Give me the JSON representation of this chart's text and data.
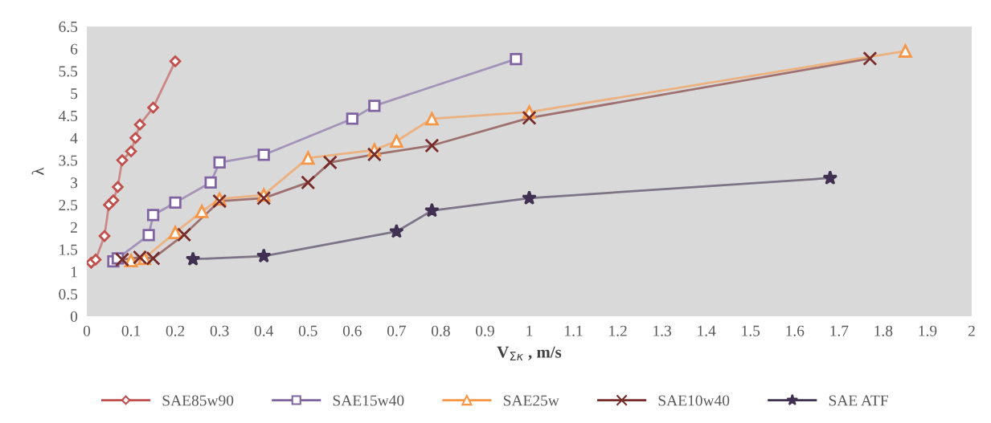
{
  "chart_data": {
    "type": "line",
    "xlabel": "V$_{Σκ}$ , m/s",
    "ylabel": "λ",
    "xlim": [
      0,
      2
    ],
    "xticks": [
      0,
      0.1,
      0.2,
      0.3,
      0.4,
      0.5,
      0.6,
      0.7,
      0.8,
      0.9,
      1,
      1.1,
      1.2,
      1.3,
      1.4,
      1.5,
      1.6,
      1.7,
      1.8,
      1.9,
      2
    ],
    "ylim": [
      0,
      6.5
    ],
    "yticks": [
      0,
      0.5,
      1,
      1.5,
      2,
      2.5,
      3,
      3.5,
      4,
      4.5,
      5,
      5.5,
      6,
      6.5
    ],
    "grid": false,
    "legend": "bottom",
    "line_style": "solid",
    "series": [
      {
        "name": "SAE85w90",
        "color": "#c0504d",
        "marker": "diamond",
        "x": [
          0.01,
          0.02,
          0.04,
          0.05,
          0.06,
          0.07,
          0.08,
          0.1,
          0.11,
          0.12,
          0.15,
          0.2
        ],
        "values": [
          1.2,
          1.27,
          1.8,
          2.5,
          2.6,
          2.9,
          3.5,
          3.7,
          4.0,
          4.3,
          4.68,
          5.72
        ]
      },
      {
        "name": "SAE15w40",
        "color": "#8064a2",
        "marker": "square",
        "x": [
          0.06,
          0.07,
          0.14,
          0.15,
          0.2,
          0.28,
          0.3,
          0.4,
          0.6,
          0.65,
          0.97
        ],
        "values": [
          1.23,
          1.3,
          1.82,
          2.27,
          2.55,
          3.0,
          3.45,
          3.62,
          4.43,
          4.72,
          5.77
        ]
      },
      {
        "name": "SAE25w",
        "color": "#f79646",
        "marker": "triangle",
        "x": [
          0.1,
          0.13,
          0.2,
          0.26,
          0.3,
          0.4,
          0.5,
          0.65,
          0.7,
          0.78,
          1.0,
          1.85
        ],
        "values": [
          1.25,
          1.3,
          1.88,
          2.35,
          2.63,
          2.72,
          3.55,
          3.73,
          3.93,
          4.43,
          4.58,
          5.95
        ]
      },
      {
        "name": "SAE10w40",
        "color": "#772c2a",
        "marker": "cross",
        "x": [
          0.08,
          0.12,
          0.15,
          0.22,
          0.3,
          0.4,
          0.5,
          0.55,
          0.65,
          0.78,
          1.0,
          1.77
        ],
        "values": [
          1.27,
          1.32,
          1.3,
          1.83,
          2.58,
          2.65,
          3.0,
          3.45,
          3.63,
          3.83,
          4.45,
          5.78
        ]
      },
      {
        "name": "SAE ATF",
        "color": "#403152",
        "marker": "star",
        "x": [
          0.24,
          0.4,
          0.7,
          0.78,
          1.0,
          1.68
        ],
        "values": [
          1.28,
          1.35,
          1.9,
          2.37,
          2.65,
          3.1
        ]
      }
    ]
  }
}
